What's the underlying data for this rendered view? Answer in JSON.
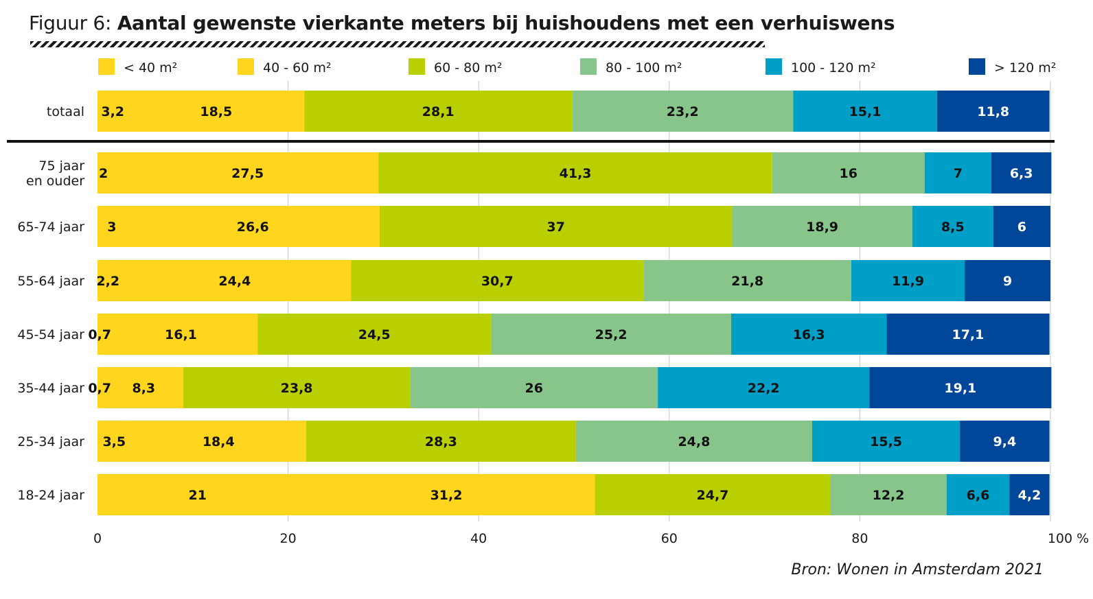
{
  "header": {
    "figure_label": "Figuur 6:",
    "title": "Aantal gewenste vierkante meters bij huishoudens met een verhuiswens"
  },
  "source": "Bron: Wonen in Amsterdam 2021",
  "chart_data": {
    "type": "bar",
    "orientation": "horizontal",
    "stacked": true,
    "title": "Aantal gewenste vierkante meters bij huishoudens met een verhuiswens",
    "xlabel": "",
    "ylabel": "",
    "xlim": [
      0,
      100
    ],
    "x_ticks": [
      "0",
      "20",
      "40",
      "60",
      "80",
      "100 %"
    ],
    "grid": true,
    "legend_position": "top",
    "categories": [
      [
        "totaal"
      ],
      [
        "75 jaar",
        "en ouder"
      ],
      [
        "65-74 jaar"
      ],
      [
        "55-64 jaar"
      ],
      [
        "45-54 jaar"
      ],
      [
        "35-44 jaar"
      ],
      [
        "25-34 jaar"
      ],
      [
        "18-24 jaar"
      ]
    ],
    "value_labels": [
      [
        "3,2",
        "18,5",
        "28,1",
        "23,2",
        "15,1",
        "11,8"
      ],
      [
        "2",
        "27,5",
        "41,3",
        "16",
        "7",
        "6,3"
      ],
      [
        "3",
        "26,6",
        "37",
        "18,9",
        "8,5",
        "6"
      ],
      [
        "2,2",
        "24,4",
        "30,7",
        "21,8",
        "11,9",
        "9"
      ],
      [
        "0,7",
        "16,1",
        "24,5",
        "25,2",
        "16,3",
        "17,1"
      ],
      [
        "0,7",
        "8,3",
        "23,8",
        "26",
        "22,2",
        "19,1"
      ],
      [
        "3,5",
        "18,4",
        "28,3",
        "24,8",
        "15,5",
        "9,4"
      ],
      [
        "21",
        "31,2",
        "24,7",
        "12,2",
        "6,6",
        "4,2"
      ]
    ],
    "series": [
      {
        "name": "< 40 m²",
        "color": "#FFD51E",
        "values": [
          3.2,
          2,
          3,
          2.2,
          0.7,
          0.7,
          3.5,
          21
        ]
      },
      {
        "name": "40 - 60 m²",
        "color": "#FFD51E",
        "values": [
          18.5,
          27.5,
          26.6,
          24.4,
          16.1,
          8.3,
          18.4,
          31.2
        ]
      },
      {
        "name": "60 - 80 m²",
        "color": "#BACF00",
        "values": [
          28.1,
          41.3,
          37,
          30.7,
          24.5,
          23.8,
          28.3,
          24.7
        ]
      },
      {
        "name": "80 - 100 m²",
        "color": "#88C58B",
        "values": [
          23.2,
          16,
          18.9,
          21.8,
          25.2,
          26,
          24.8,
          12.2
        ]
      },
      {
        "name": "100 - 120 m²",
        "color": "#009FC8",
        "values": [
          15.1,
          7,
          8.5,
          11.9,
          16.3,
          22.2,
          15.5,
          6.6
        ]
      },
      {
        "name": "> 120 m²",
        "color": "#004699",
        "values": [
          11.8,
          6.3,
          6,
          9,
          17.1,
          19.1,
          9.4,
          4.2
        ]
      }
    ]
  }
}
